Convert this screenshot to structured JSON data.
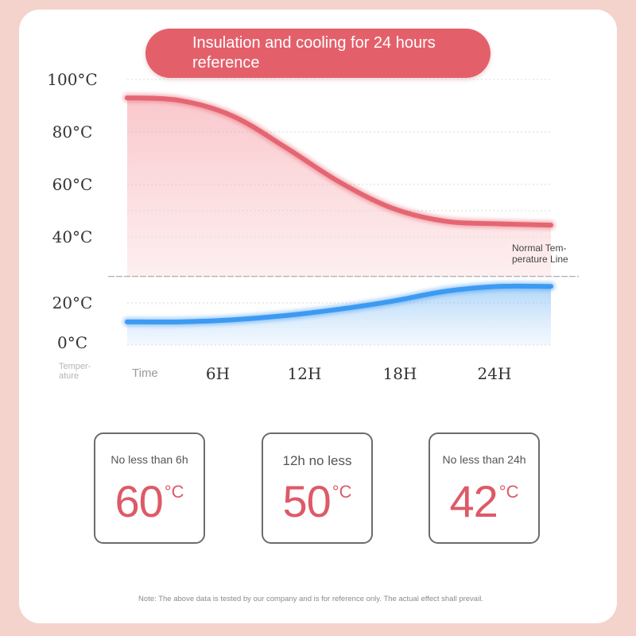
{
  "title": "Insulation and cooling for 24 hours reference",
  "chart_data": {
    "type": "line",
    "title": "Insulation and cooling for 24 hours reference",
    "xlabel": "Time",
    "ylabel": "Temper-ature",
    "x_ticks": [
      "6H",
      "12H",
      "18H",
      "24H"
    ],
    "y_ticks": [
      "100°C",
      "80°C",
      "60°C",
      "40°C",
      "20°C",
      "0°C"
    ],
    "series": [
      {
        "color": "#e56672",
        "points": [
          [
            0,
            93
          ],
          [
            3,
            92
          ],
          [
            6,
            86
          ],
          [
            9,
            74
          ],
          [
            12,
            61
          ],
          [
            15,
            51
          ],
          [
            18,
            46
          ],
          [
            21,
            45
          ],
          [
            24,
            44.5
          ]
        ]
      },
      {
        "color": "#3d9af2",
        "points": [
          [
            0,
            11
          ],
          [
            3,
            11
          ],
          [
            6,
            12
          ],
          [
            9,
            14
          ],
          [
            12,
            17
          ],
          [
            15,
            20.5
          ],
          [
            18,
            23.5
          ],
          [
            21,
            25
          ],
          [
            24,
            25
          ]
        ]
      }
    ],
    "normal_temperature_line": {
      "label": "Normal Tem-\nperature Line",
      "value": 28
    }
  },
  "stats": [
    {
      "caption": "No less than 6h",
      "value": "60",
      "unit": "°C"
    },
    {
      "caption": "12h no less",
      "value": "50",
      "unit": "°C"
    },
    {
      "caption": "No less than 24h",
      "value": "42",
      "unit": "°C"
    }
  ],
  "note": "Note: The above data is tested by our company and is for reference only. The actual effect shall prevail."
}
